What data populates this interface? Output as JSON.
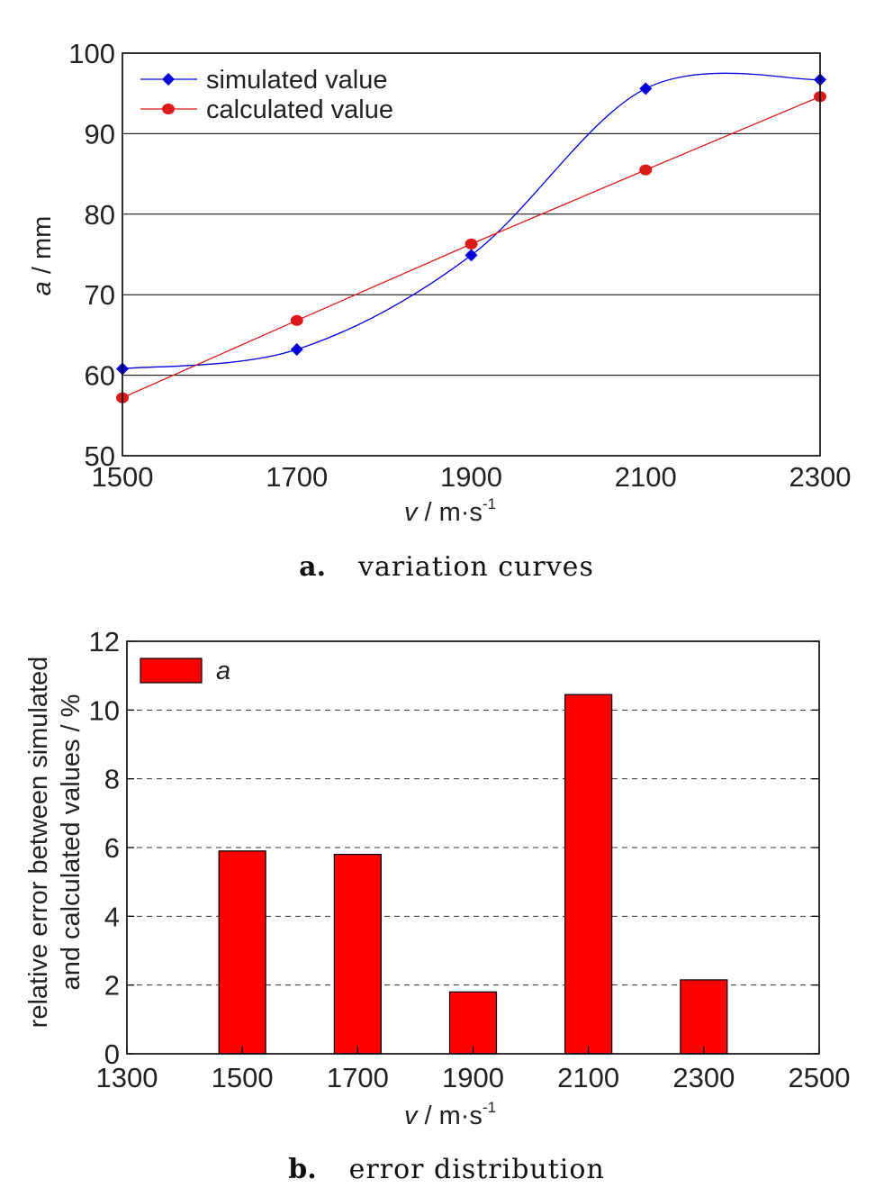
{
  "chart_data": [
    {
      "type": "line",
      "caption": {
        "letter": "a.",
        "text": "variation curves"
      },
      "xlabel": {
        "var": "v",
        "unit": " / m·s",
        "sup": "-1"
      },
      "ylabel": {
        "var": "a",
        "unit": " / mm"
      },
      "xlim": [
        1500,
        2300
      ],
      "ylim": [
        50,
        100
      ],
      "xticks": [
        1500,
        1700,
        1900,
        2100,
        2300
      ],
      "yticks": [
        50,
        60,
        70,
        80,
        90,
        100
      ],
      "grid": "horizontal",
      "legend": "top-left",
      "series": [
        {
          "name": "simulated value",
          "color": "#0000dd",
          "marker": "diamond",
          "smooth": true,
          "x": [
            1500,
            1700,
            1900,
            2100,
            2300
          ],
          "y": [
            60.8,
            63.2,
            74.9,
            95.6,
            96.7
          ]
        },
        {
          "name": "calculated value",
          "color": "#dd1a1a",
          "marker": "circle",
          "smooth": false,
          "x": [
            1500,
            1700,
            1900,
            2100,
            2300
          ],
          "y": [
            57.2,
            66.8,
            76.3,
            85.5,
            94.6
          ]
        }
      ]
    },
    {
      "type": "bar",
      "caption": {
        "letter": "b.",
        "text": "error distribution"
      },
      "xlabel": {
        "var": "v",
        "unit": " / m·s",
        "sup": "-1"
      },
      "ylabel": {
        "line1": "relative error between simulated",
        "line2": "and calculated values / %"
      },
      "xlim": [
        1300,
        2500
      ],
      "ylim": [
        0,
        12
      ],
      "xticks": [
        1300,
        1500,
        1700,
        1900,
        2100,
        2300,
        2500
      ],
      "yticks": [
        0,
        2,
        4,
        6,
        8,
        10,
        12
      ],
      "grid": "horizontal-dashed",
      "legend": "top-left",
      "series": [
        {
          "name": "a",
          "color": "#ff0000",
          "x": [
            1500,
            1700,
            1900,
            2100,
            2300
          ],
          "values": [
            5.9,
            5.8,
            1.8,
            10.45,
            2.15
          ]
        }
      ]
    }
  ]
}
